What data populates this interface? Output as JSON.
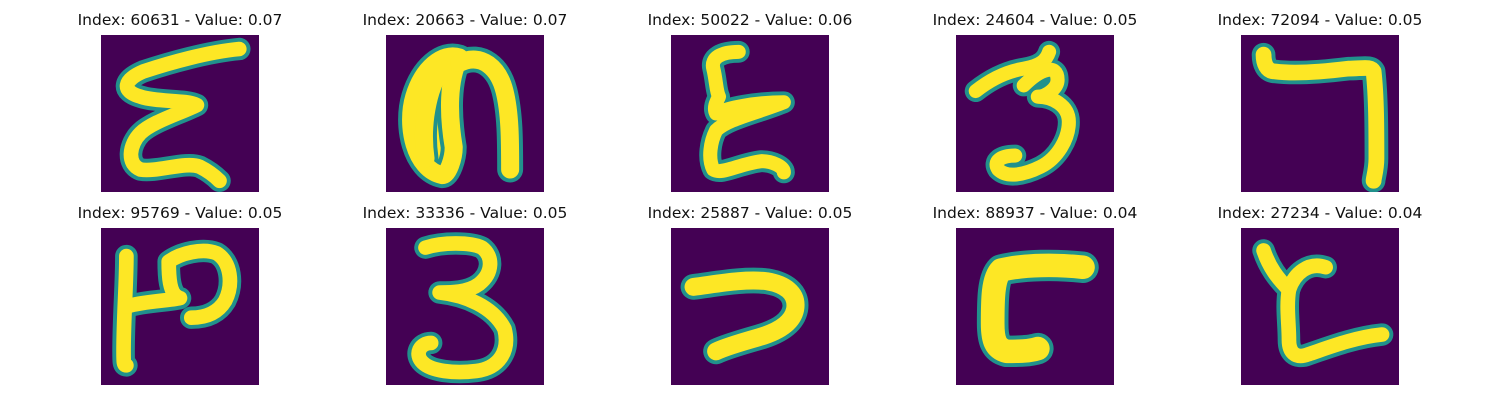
{
  "chart_data": {
    "type": "image-grid",
    "colormap": {
      "name": "viridis",
      "background": "#440154",
      "edge": "#21918c",
      "foreground": "#fde725"
    },
    "rows": 2,
    "columns": 5,
    "panels": [
      {
        "title": "Index: 60631 - Value: 0.07",
        "index": 60631,
        "value": 0.07,
        "glyph": "sigma-scribble"
      },
      {
        "title": "Index: 20663 - Value: 0.07",
        "index": 20663,
        "value": 0.07,
        "glyph": "filled-arch"
      },
      {
        "title": "Index: 50022 - Value: 0.06",
        "index": 50022,
        "value": 0.06,
        "glyph": "epsilon-scribble"
      },
      {
        "title": "Index: 24604 - Value: 0.05",
        "index": 24604,
        "value": 0.05,
        "glyph": "three-hooked"
      },
      {
        "title": "Index: 72094 - Value: 0.05",
        "index": 72094,
        "value": 0.05,
        "glyph": "seven-bracket"
      },
      {
        "title": "Index: 95769 - Value: 0.05",
        "index": 95769,
        "value": 0.05,
        "glyph": "stem-loop"
      },
      {
        "title": "Index: 33336 - Value: 0.05",
        "index": 33336,
        "value": 0.05,
        "glyph": "three"
      },
      {
        "title": "Index: 25887 - Value: 0.05",
        "index": 25887,
        "value": 0.05,
        "glyph": "hook-seven"
      },
      {
        "title": "Index: 88937 - Value: 0.04",
        "index": 88937,
        "value": 0.04,
        "glyph": "bold-gamma"
      },
      {
        "title": "Index: 27234 - Value: 0.04",
        "index": 27234,
        "value": 0.04,
        "glyph": "y-tail"
      }
    ]
  }
}
